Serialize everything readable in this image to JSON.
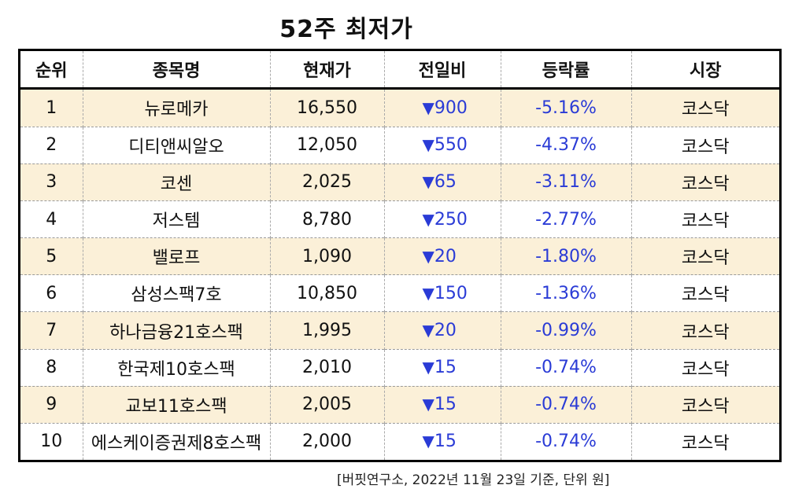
{
  "title": "52주 최저가",
  "headers": [
    "순위",
    "종목명",
    "현재가",
    "전일비",
    "등락률",
    "시장"
  ],
  "down_marker": "▼",
  "rows": [
    {
      "rank": "1",
      "name": "뉴로메카",
      "price": "16,550",
      "change": "900",
      "rate": "-5.16%",
      "market": "코스닥"
    },
    {
      "rank": "2",
      "name": "디티앤씨알오",
      "price": "12,050",
      "change": "550",
      "rate": "-4.37%",
      "market": "코스닥"
    },
    {
      "rank": "3",
      "name": "코센",
      "price": "2,025",
      "change": "65",
      "rate": "-3.11%",
      "market": "코스닥"
    },
    {
      "rank": "4",
      "name": "저스템",
      "price": "8,780",
      "change": "250",
      "rate": "-2.77%",
      "market": "코스닥"
    },
    {
      "rank": "5",
      "name": "밸로프",
      "price": "1,090",
      "change": "20",
      "rate": "-1.80%",
      "market": "코스닥"
    },
    {
      "rank": "6",
      "name": "삼성스팩7호",
      "price": "10,850",
      "change": "150",
      "rate": "-1.36%",
      "market": "코스닥"
    },
    {
      "rank": "7",
      "name": "하나금융21호스팩",
      "price": "1,995",
      "change": "20",
      "rate": "-0.99%",
      "market": "코스닥"
    },
    {
      "rank": "8",
      "name": "한국제10호스팩",
      "price": "2,010",
      "change": "15",
      "rate": "-0.74%",
      "market": "코스닥"
    },
    {
      "rank": "9",
      "name": "교보11호스팩",
      "price": "2,005",
      "change": "15",
      "rate": "-0.74%",
      "market": "코스닥"
    },
    {
      "rank": "10",
      "name": "에스케이증권제8호스팩",
      "price": "2,000",
      "change": "15",
      "rate": "-0.74%",
      "market": "코스닥"
    }
  ],
  "footnote": "[버핏연구소, 2022년 11월 23일 기준, 단위 원]",
  "colors": {
    "row_highlight": "#fbf0d8",
    "down": "#2a3bd6"
  }
}
